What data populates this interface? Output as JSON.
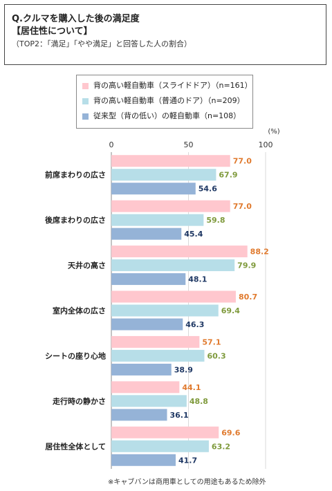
{
  "header": {
    "question": "Q.クルマを購入した後の満足度",
    "heading": "【居住性について】",
    "subtitle": "（TOP2：「満足」「やや満足」と回答した人の割合）"
  },
  "footnote": "※キャブバンは商用車としての用途もあるため除外",
  "chart_data": {
    "type": "bar",
    "orientation": "horizontal",
    "unit": "(%)",
    "xlim": [
      0,
      100
    ],
    "ticks": [
      "0",
      "50",
      "100"
    ],
    "grid": true,
    "legend_position": "top-center",
    "categories": [
      "前席まわりの広さ",
      "後席まわりの広さ",
      "天井の高さ",
      "室内全体の広さ",
      "シートの座り心地",
      "走行時の静かさ",
      "居住性全体として"
    ],
    "series": [
      {
        "name": "背の高い軽自動車（スライドドア）（n=161）",
        "color": "#FFC7CE",
        "label_color": "#E07A2E",
        "values": [
          77.0,
          77.0,
          88.2,
          80.7,
          57.1,
          44.1,
          69.6
        ]
      },
      {
        "name": "背の高い軽自動車（普通のドア）（n=209）",
        "color": "#B7DEE8",
        "label_color": "#7F9A3C",
        "values": [
          67.9,
          59.8,
          79.9,
          69.4,
          60.3,
          48.8,
          63.2
        ]
      },
      {
        "name": "従来型（背の低い）の軽自動車（n=108）",
        "color": "#95B3D7",
        "label_color": "#1F3864",
        "values": [
          54.6,
          45.4,
          48.1,
          46.3,
          38.9,
          36.1,
          41.7
        ]
      }
    ]
  }
}
